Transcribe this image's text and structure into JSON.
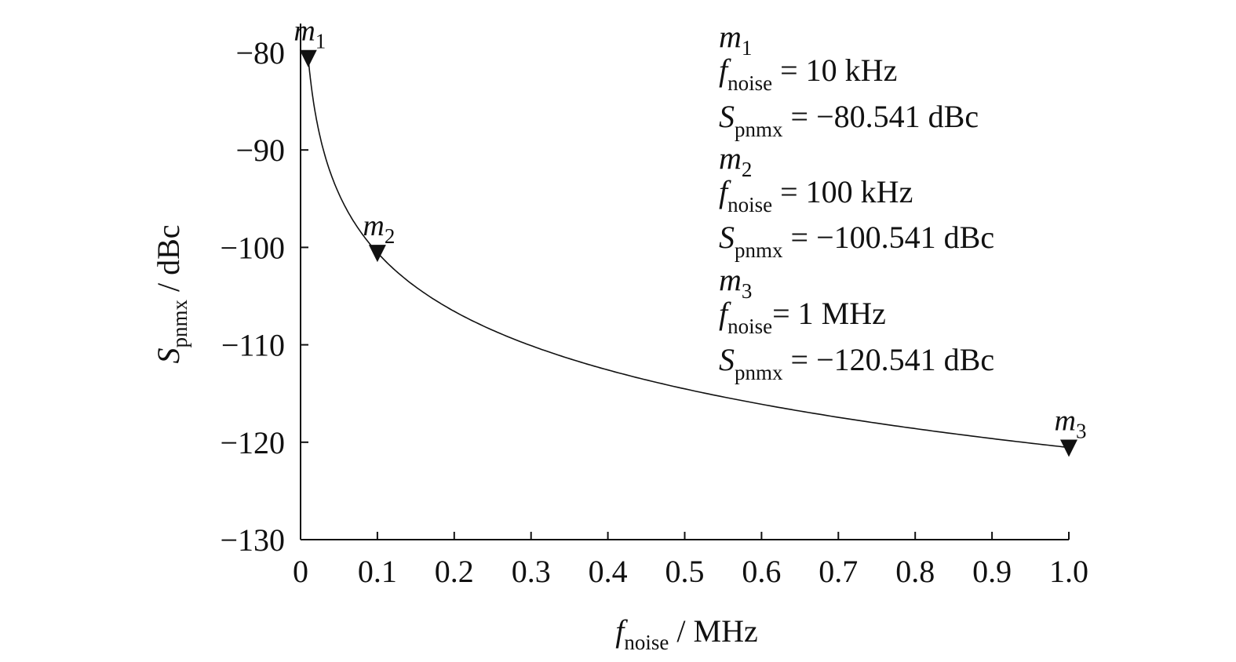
{
  "chart_data": {
    "type": "line",
    "title": "",
    "x_axis": {
      "label_var": "f",
      "label_sub": "noise",
      "label_unit": " / MHz",
      "range": [
        0,
        1.0
      ],
      "ticks": [
        0,
        0.1,
        0.2,
        0.3,
        0.4,
        0.5,
        0.6,
        0.7,
        0.8,
        0.9,
        1.0
      ],
      "tick_labels": [
        "0",
        "0.1",
        "0.2",
        "0.3",
        "0.4",
        "0.5",
        "0.6",
        "0.7",
        "0.8",
        "0.9",
        "1.0"
      ]
    },
    "y_axis": {
      "label_var": "S",
      "label_sub": "pnmx",
      "label_unit": " / dBc",
      "range": [
        -130,
        -80
      ],
      "ticks": [
        -80,
        -90,
        -100,
        -110,
        -120,
        -130
      ],
      "tick_labels": [
        "−80",
        "−90",
        "−100",
        "−110",
        "−120",
        "−130"
      ]
    },
    "series": [
      {
        "model": "20*log10(10000 / f_Hz) - 80.541",
        "color": "#111111",
        "x": [
          0.01,
          0.015,
          0.02,
          0.03,
          0.04,
          0.05,
          0.06,
          0.07,
          0.08,
          0.1,
          0.12,
          0.15,
          0.2,
          0.25,
          0.3,
          0.35,
          0.4,
          0.45,
          0.5,
          0.55,
          0.6,
          0.65,
          0.7,
          0.75,
          0.8,
          0.85,
          0.9,
          0.95,
          1.0
        ],
        "y": [
          -80.54,
          -84.06,
          -86.56,
          -90.08,
          -92.58,
          -94.52,
          -96.1,
          -97.44,
          -98.6,
          -100.54,
          -102.12,
          -104.06,
          -106.56,
          -108.5,
          -110.08,
          -111.42,
          -112.58,
          -113.61,
          -114.52,
          -115.35,
          -116.1,
          -116.8,
          -117.44,
          -118.04,
          -118.6,
          -119.13,
          -119.63,
          -120.1,
          -120.54
        ]
      }
    ],
    "markers": [
      {
        "name": "m",
        "index": "1",
        "x": 0.01,
        "y": -80.541
      },
      {
        "name": "m",
        "index": "2",
        "x": 0.1,
        "y": -100.541
      },
      {
        "name": "m",
        "index": "3",
        "x": 1.0,
        "y": -120.541
      }
    ],
    "annotation": [
      {
        "kind": "marker",
        "name": "m",
        "index": "1"
      },
      {
        "kind": "value",
        "var": "f",
        "sub": "noise",
        "text": " = 10 kHz"
      },
      {
        "kind": "value",
        "var": "S",
        "sub": "pnmx",
        "text": " = −80.541 dBc"
      },
      {
        "kind": "marker",
        "name": "m",
        "index": "2"
      },
      {
        "kind": "value",
        "var": "f",
        "sub": "noise",
        "text": " = 100 kHz"
      },
      {
        "kind": "value",
        "var": "S",
        "sub": "pnmx",
        "text": " = −100.541 dBc"
      },
      {
        "kind": "marker",
        "name": "m",
        "index": "3"
      },
      {
        "kind": "value",
        "var": "f",
        "sub": "noise",
        "text": "= 1 MHz"
      },
      {
        "kind": "value",
        "var": "S",
        "sub": "pnmx",
        "text": " = −120.541 dBc"
      }
    ],
    "grid": false,
    "legend": "none"
  }
}
